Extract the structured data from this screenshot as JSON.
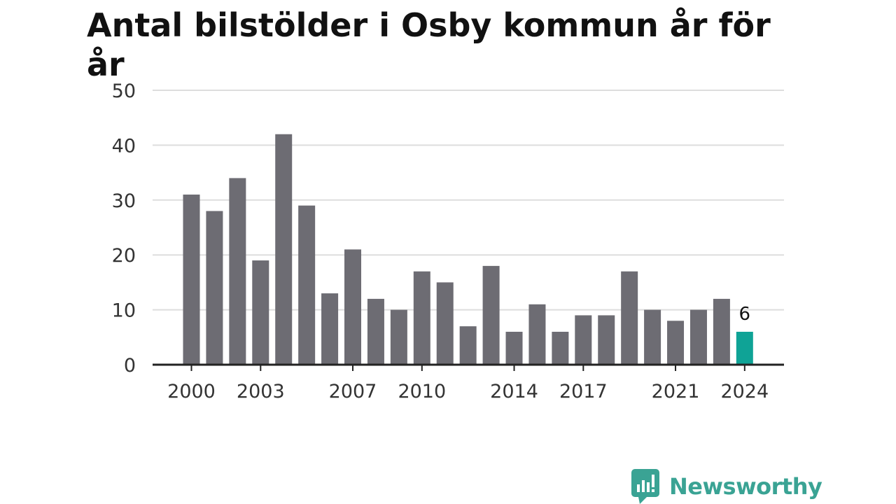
{
  "chart_data": {
    "type": "bar",
    "title": "Antal bilstölder i Osby kommun år för år",
    "xlabel": "",
    "ylabel": "",
    "ylim": [
      0,
      50
    ],
    "yticks": [
      0,
      10,
      20,
      30,
      40,
      50
    ],
    "grid": true,
    "categories": [
      "2000",
      "2001",
      "2002",
      "2003",
      "2004",
      "2005",
      "2006",
      "2007",
      "2008",
      "2009",
      "2010",
      "2011",
      "2012",
      "2013",
      "2014",
      "2015",
      "2016",
      "2017",
      "2018",
      "2019",
      "2020",
      "2021",
      "2022",
      "2023",
      "2024"
    ],
    "values": [
      31,
      28,
      34,
      19,
      42,
      29,
      13,
      21,
      12,
      10,
      17,
      15,
      7,
      18,
      6,
      11,
      6,
      9,
      9,
      17,
      10,
      8,
      10,
      12,
      6
    ],
    "xtick_labels": [
      "2000",
      "2003",
      "2007",
      "2010",
      "2014",
      "2017",
      "2021",
      "2024"
    ],
    "highlight_category": "2024",
    "highlight_label": "6",
    "colors": {
      "bar": "#6d6c73",
      "highlight": "#0fa396",
      "grid": "#dddddd",
      "axis": "#222222"
    }
  },
  "logo": {
    "text": "Newsworthy",
    "color": "#3aa394"
  }
}
